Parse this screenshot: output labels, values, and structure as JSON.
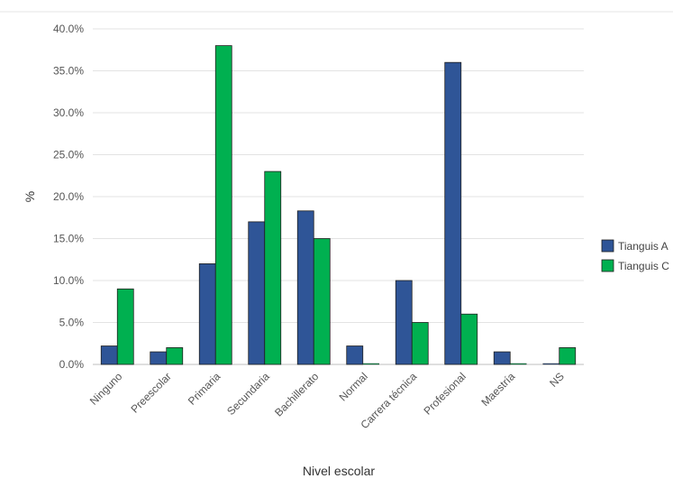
{
  "chart_data": {
    "type": "bar",
    "xlabel": "Nivel escolar",
    "ylabel": "%",
    "ylim": [
      0,
      40
    ],
    "yticks": [
      "0.0%",
      "5.0%",
      "10.0%",
      "15.0%",
      "20.0%",
      "25.0%",
      "30.0%",
      "35.0%",
      "40.0%"
    ],
    "grid": true,
    "legend_position": "right",
    "categories": [
      "Ninguno",
      "Preescolar",
      "Primaria",
      "Secundaria",
      "Bachillerato",
      "Normal",
      "Carrera técnica",
      "Profesional",
      "Maestría",
      "NS"
    ],
    "series": [
      {
        "name": "Tianguis A",
        "color": "#2f5597",
        "values": [
          2.2,
          1.5,
          12.0,
          17.0,
          18.3,
          2.2,
          10.0,
          36.0,
          1.5,
          0.0
        ]
      },
      {
        "name": "Tianguis C",
        "color": "#00b050",
        "values": [
          9.0,
          2.0,
          38.0,
          23.0,
          15.0,
          0.0,
          5.0,
          6.0,
          0.0,
          2.0
        ]
      }
    ]
  }
}
